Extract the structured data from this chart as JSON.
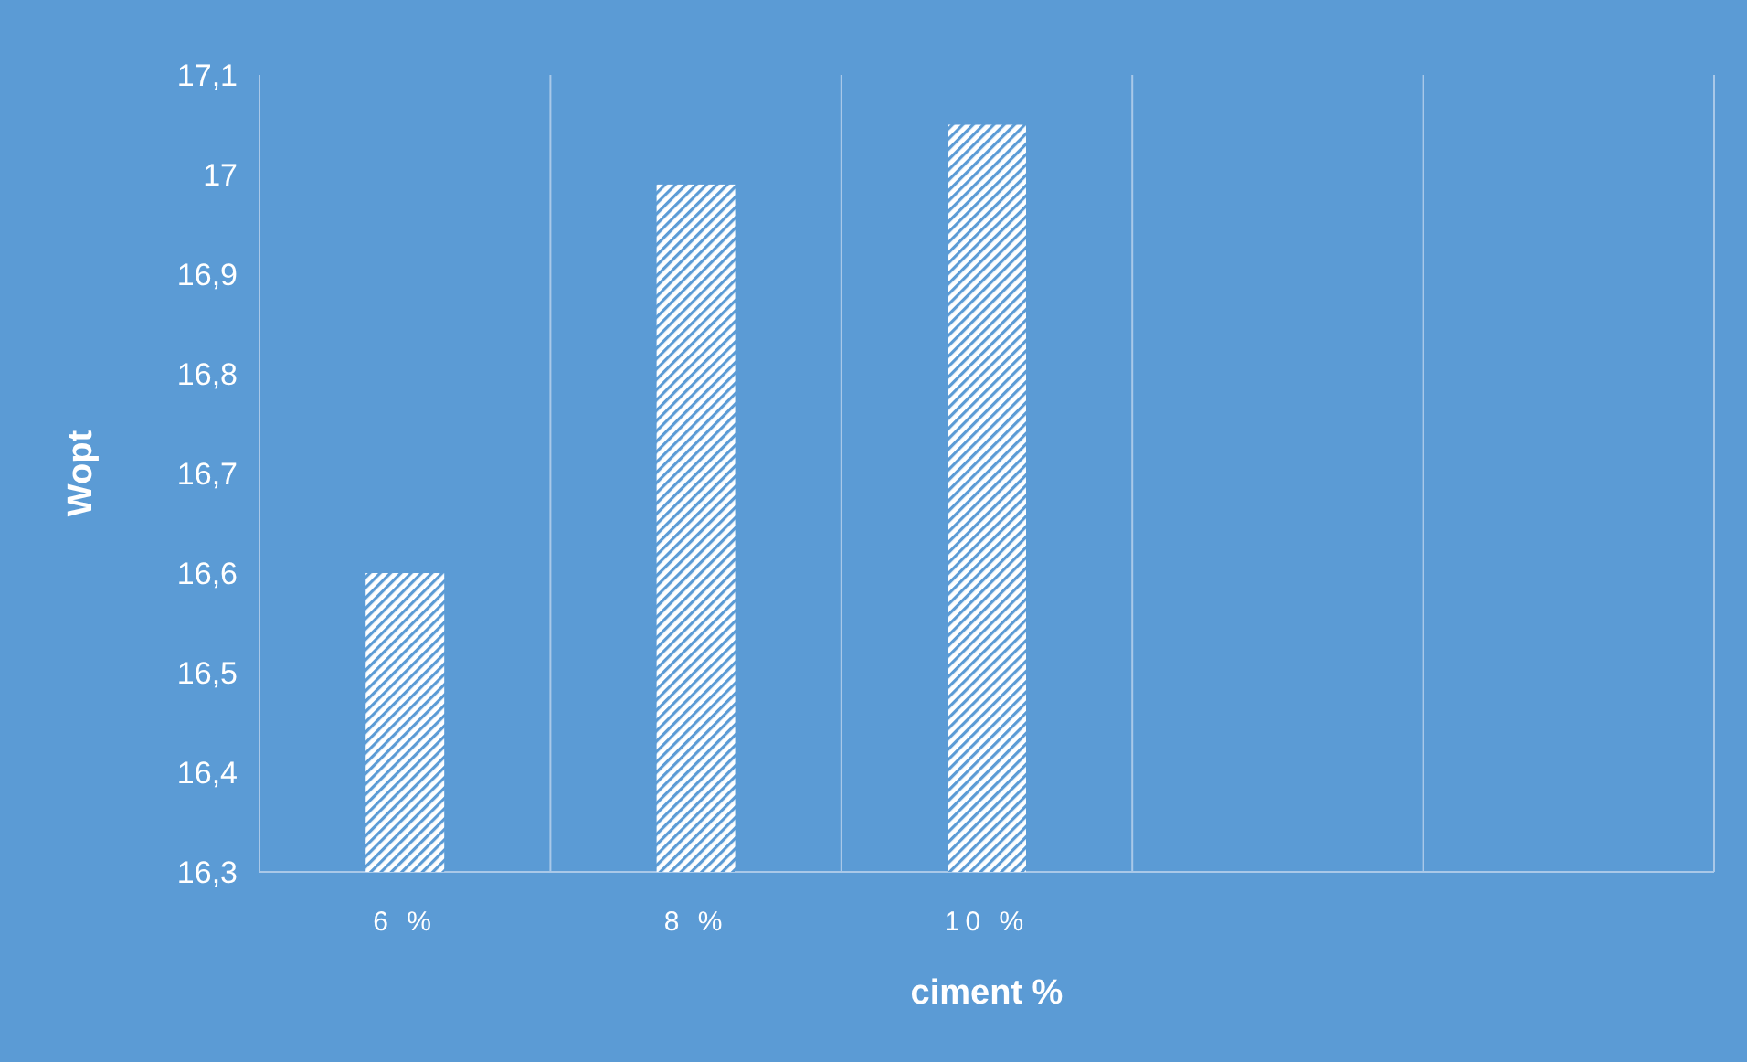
{
  "chart_data": {
    "type": "bar",
    "xlabel": "ciment %",
    "ylabel": "Wopt",
    "categories": [
      "6 %",
      "8 %",
      "10 %",
      null,
      null
    ],
    "values": [
      16.6,
      16.99,
      17.05,
      null,
      null
    ],
    "color": "#ffffff",
    "ylim": [
      16.3,
      17.1
    ],
    "yticks": [
      {
        "value": 16.3,
        "label": "16,3"
      },
      {
        "value": 16.4,
        "label": "16,4"
      },
      {
        "value": 16.5,
        "label": "16,5"
      },
      {
        "value": 16.6,
        "label": "16,6"
      },
      {
        "value": 16.7,
        "label": "16,7"
      },
      {
        "value": 16.8,
        "label": "16,8"
      },
      {
        "value": 16.9,
        "label": "16,9"
      },
      17,
      {
        "value": 17.1,
        "label": "17,1"
      }
    ],
    "grid": "x"
  }
}
